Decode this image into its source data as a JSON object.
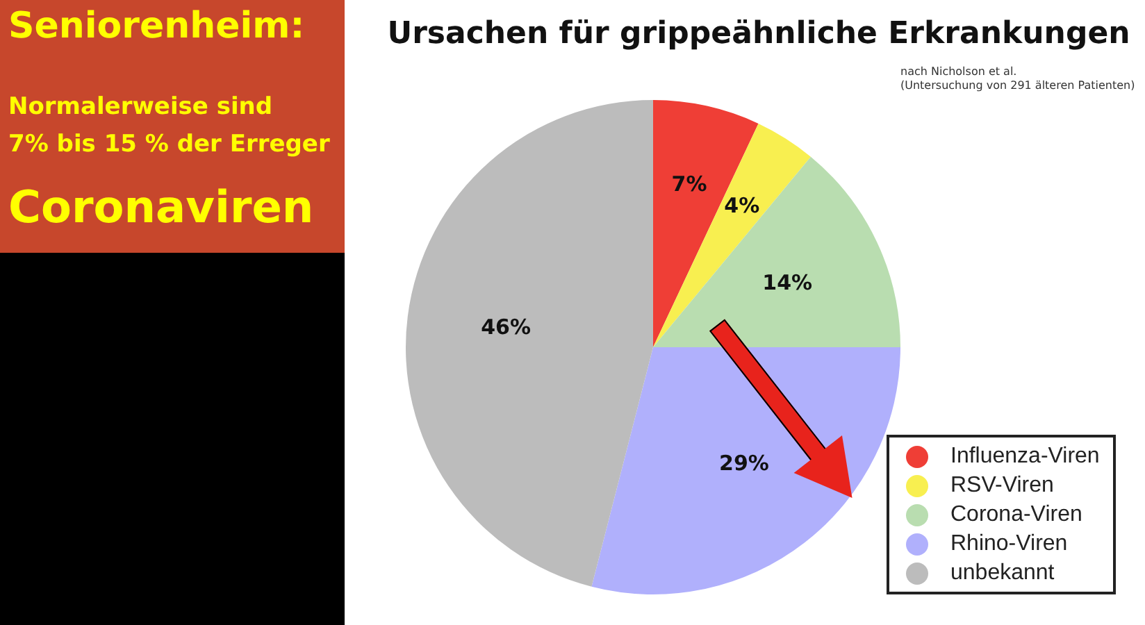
{
  "chart_data": {
    "type": "pie",
    "title": "Ursachen für grippeähnliche Erkrankungen",
    "categories": [
      "Influenza-Viren",
      "RSV-Viren",
      "Corona-Viren",
      "Rhino-Viren",
      "unbekannt"
    ],
    "values": [
      7,
      4,
      14,
      29,
      46
    ],
    "colors": [
      "#ef3e36",
      "#f8ef50",
      "#b9ddb0",
      "#b0b0fc",
      "#bcbcbc"
    ],
    "value_labels": [
      "7%",
      "4%",
      "14%",
      "29%",
      "46%"
    ],
    "legend": "bottom right",
    "annotations": [
      "nach Nicholson et al.",
      "(Untersuchung von 291 älteren Patienten)",
      "Seniorenheim:",
      "Normalerweise sind",
      "7% bis 15 % der Erreger",
      "Coronaviren"
    ]
  }
}
